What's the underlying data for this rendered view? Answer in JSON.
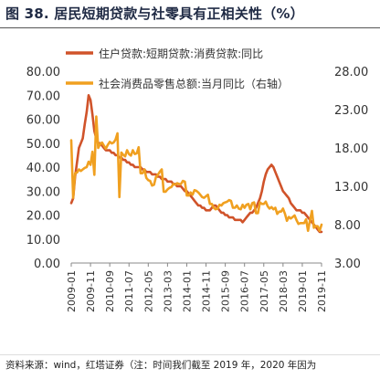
{
  "title": "图 38. 居民短期贷款与社零具有正相关性（%）",
  "source": "资料来源：wind，红塔证券（注：时间我们截至 2019 年，2020 年因为",
  "colors": {
    "loan": "#d0532a",
    "retail": "#f0a020",
    "axis": "#888888",
    "text": "#333333"
  },
  "chart_data": {
    "type": "line",
    "title": "",
    "x": [
      "2009-01",
      "2009-02",
      "2009-03",
      "2009-04",
      "2009-05",
      "2009-06",
      "2009-07",
      "2009-08",
      "2009-09",
      "2009-10",
      "2009-11",
      "2009-12",
      "2010-01",
      "2010-02",
      "2010-03",
      "2010-04",
      "2010-05",
      "2010-06",
      "2010-07",
      "2010-08",
      "2010-09",
      "2010-10",
      "2010-11",
      "2010-12",
      "2011-01",
      "2011-02",
      "2011-03",
      "2011-04",
      "2011-05",
      "2011-06",
      "2011-07",
      "2011-08",
      "2011-09",
      "2011-10",
      "2011-11",
      "2011-12",
      "2012-01",
      "2012-02",
      "2012-03",
      "2012-04",
      "2012-05",
      "2012-06",
      "2012-07",
      "2012-08",
      "2012-09",
      "2012-10",
      "2012-11",
      "2012-12",
      "2013-01",
      "2013-02",
      "2013-03",
      "2013-04",
      "2013-05",
      "2013-06",
      "2013-07",
      "2013-08",
      "2013-09",
      "2013-10",
      "2013-11",
      "2013-12",
      "2014-01",
      "2014-02",
      "2014-03",
      "2014-04",
      "2014-05",
      "2014-06",
      "2014-07",
      "2014-08",
      "2014-09",
      "2014-10",
      "2014-11",
      "2014-12",
      "2015-01",
      "2015-02",
      "2015-03",
      "2015-04",
      "2015-05",
      "2015-06",
      "2015-07",
      "2015-08",
      "2015-09",
      "2015-10",
      "2015-11",
      "2015-12",
      "2016-01",
      "2016-02",
      "2016-03",
      "2016-04",
      "2016-05",
      "2016-06",
      "2016-07",
      "2016-08",
      "2016-09",
      "2016-10",
      "2016-11",
      "2016-12",
      "2017-01",
      "2017-02",
      "2017-03",
      "2017-04",
      "2017-05",
      "2017-06",
      "2017-07",
      "2017-08",
      "2017-09",
      "2017-10",
      "2017-11",
      "2017-12",
      "2018-01",
      "2018-02",
      "2018-03",
      "2018-04",
      "2018-05",
      "2018-06",
      "2018-07",
      "2018-08",
      "2018-09",
      "2018-10",
      "2018-11",
      "2018-12",
      "2019-01",
      "2019-02",
      "2019-03",
      "2019-04",
      "2019-05",
      "2019-06",
      "2019-07",
      "2019-08",
      "2019-09",
      "2019-10",
      "2019-11"
    ],
    "x_tick_labels": [
      "2009-01",
      "2009-11",
      "2010-09",
      "2011-07",
      "2012-05",
      "2013-03",
      "2014-01",
      "2014-11",
      "2015-09",
      "2016-07",
      "2017-05",
      "2018-03",
      "2019-01",
      "2019-11"
    ],
    "y_left": {
      "min": 0,
      "max": 80,
      "ticks": [
        "0.00",
        "10.00",
        "20.00",
        "30.00",
        "40.00",
        "50.00",
        "60.00",
        "70.00",
        "80.00"
      ]
    },
    "y_right": {
      "min": 3,
      "max": 28,
      "ticks": [
        "3.00",
        "8.00",
        "13.00",
        "18.00",
        "23.00",
        "28.00"
      ]
    },
    "series": [
      {
        "name": "住户贷款:短期贷款:消费贷款:同比",
        "axis": "left",
        "values": [
          25,
          27,
          36,
          42,
          48,
          50,
          52,
          58,
          63,
          70,
          68,
          62,
          55,
          52,
          50,
          50,
          49,
          48,
          47,
          47,
          47,
          46,
          46,
          45,
          45,
          44,
          44,
          43,
          43,
          42,
          42,
          41,
          41,
          40,
          40,
          40,
          40,
          39,
          39,
          38,
          38,
          38,
          37,
          37,
          37,
          36,
          36,
          35,
          35,
          35,
          34,
          34,
          34,
          33,
          33,
          32,
          32,
          32,
          31,
          30,
          30,
          29,
          28,
          27,
          26,
          25,
          24,
          24,
          23,
          23,
          22,
          22,
          22,
          23,
          24,
          24,
          23,
          22,
          21,
          21,
          20,
          20,
          19,
          19,
          19,
          18,
          18,
          18,
          18,
          17,
          18,
          19,
          20,
          21,
          21,
          22,
          23,
          25,
          27,
          30,
          34,
          37,
          39,
          40,
          41,
          40,
          38,
          36,
          34,
          32,
          30,
          29,
          28,
          27,
          25,
          24,
          23,
          22,
          22,
          22,
          21,
          21,
          20,
          19,
          18,
          17,
          16,
          15,
          14,
          13,
          13
        ]
      },
      {
        "name": "社会消费品零售总额:当月同比（右轴）",
        "axis": "right",
        "values": [
          19.0,
          11.5,
          14.7,
          14.8,
          15.2,
          15.0,
          15.2,
          15.4,
          15.5,
          16.2,
          15.8,
          17.5,
          14.5,
          22.1,
          18.0,
          18.5,
          18.7,
          18.3,
          17.9,
          18.4,
          18.8,
          18.6,
          18.7,
          19.1,
          19.9,
          11.6,
          17.4,
          17.1,
          16.9,
          17.7,
          17.2,
          17.0,
          17.7,
          17.2,
          17.3,
          18.1,
          14.7,
          14.7,
          15.2,
          14.1,
          13.8,
          13.7,
          13.1,
          13.2,
          14.2,
          14.5,
          14.9,
          15.2,
          12.3,
          12.3,
          12.6,
          12.8,
          12.9,
          13.3,
          13.2,
          13.4,
          13.3,
          13.3,
          13.7,
          13.6,
          11.8,
          11.8,
          12.2,
          11.9,
          12.5,
          12.4,
          12.2,
          11.9,
          11.6,
          11.5,
          11.7,
          11.9,
          10.7,
          10.7,
          10.2,
          10.0,
          10.1,
          10.6,
          10.5,
          10.8,
          10.9,
          11.0,
          11.2,
          11.1,
          10.2,
          10.2,
          10.5,
          10.1,
          10.0,
          10.6,
          10.2,
          10.6,
          10.7,
          10.0,
          10.8,
          10.9,
          9.5,
          9.5,
          10.9,
          10.7,
          10.7,
          11.0,
          10.4,
          10.1,
          10.3,
          10.0,
          10.2,
          9.4,
          9.7,
          9.7,
          10.1,
          9.4,
          8.5,
          9.0,
          8.8,
          9.0,
          9.2,
          8.6,
          8.1,
          8.2,
          8.2,
          8.2,
          8.7,
          7.2,
          8.6,
          9.8,
          7.6,
          7.8,
          7.8,
          7.2,
          8.0
        ]
      }
    ]
  }
}
